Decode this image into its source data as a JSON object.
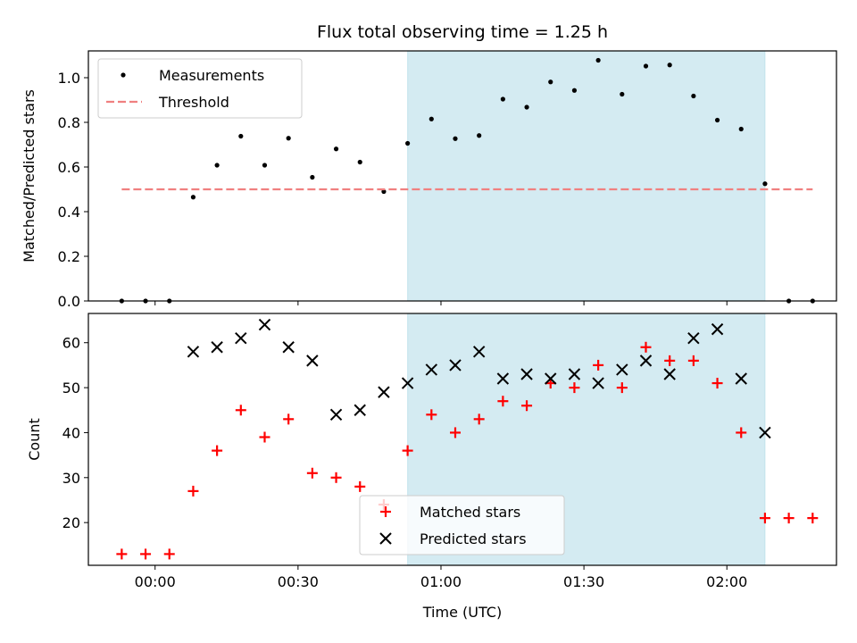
{
  "chart_data": [
    {
      "type": "scatter",
      "title": "Flux total observing time = 1.25 h",
      "ylabel": "Matched/Predicted stars",
      "xlabel": "",
      "x_unit": "minutes after 00:00 UTC",
      "xlim": [
        -14,
        143
      ],
      "ylim": [
        0,
        1.12
      ],
      "yticks": [
        "0.0",
        "0.2",
        "0.4",
        "0.6",
        "0.8",
        "1.0"
      ],
      "ytick_values": [
        0,
        0.2,
        0.4,
        0.6,
        0.8,
        1.0
      ],
      "grid": false,
      "legend_position": "upper-left",
      "shaded_span": {
        "x0": 53,
        "x1": 128,
        "color": "#add8e6"
      },
      "series": [
        {
          "name": "Measurements",
          "marker": "dot",
          "color": "#000000",
          "x": [
            -7,
            -2,
            3,
            8,
            13,
            18,
            23,
            28,
            33,
            38,
            43,
            48,
            53,
            58,
            63,
            68,
            73,
            78,
            83,
            88,
            93,
            98,
            103,
            108,
            113,
            118,
            123,
            128,
            133,
            138
          ],
          "y": [
            0.0,
            0.0,
            0.0,
            0.465,
            0.608,
            0.738,
            0.608,
            0.729,
            0.554,
            0.681,
            0.622,
            0.49,
            0.706,
            0.815,
            0.727,
            0.741,
            0.904,
            0.868,
            0.981,
            0.943,
            1.078,
            0.926,
            1.052,
            1.057,
            0.918,
            0.81,
            0.77,
            0.525,
            0.0,
            0.0
          ]
        },
        {
          "name": "Threshold",
          "style": "dashed",
          "color": "#f08080",
          "x": [
            -7,
            138
          ],
          "y": [
            0.5,
            0.5
          ]
        }
      ]
    },
    {
      "type": "scatter",
      "title": "",
      "ylabel": "Count",
      "xlabel": "Time (UTC)",
      "x_unit": "minutes after 00:00 UTC",
      "xlim": [
        -14,
        143
      ],
      "ylim": [
        10.5,
        66.5
      ],
      "xticks": [
        "00:00",
        "00:30",
        "01:00",
        "01:30",
        "02:00"
      ],
      "xtick_values": [
        0,
        30,
        60,
        90,
        120
      ],
      "yticks": [
        "20",
        "30",
        "40",
        "50",
        "60"
      ],
      "ytick_values": [
        20,
        30,
        40,
        50,
        60
      ],
      "grid": false,
      "legend_position": "lower-center",
      "shaded_span": {
        "x0": 53,
        "x1": 128,
        "color": "#add8e6"
      },
      "series": [
        {
          "name": "Matched stars",
          "marker": "plus",
          "color": "#ff0000",
          "x": [
            -7,
            -2,
            3,
            8,
            13,
            18,
            23,
            28,
            33,
            38,
            43,
            48,
            53,
            58,
            63,
            68,
            73,
            78,
            83,
            88,
            93,
            98,
            103,
            108,
            113,
            118,
            123,
            128,
            133,
            138
          ],
          "y": [
            13,
            13,
            13,
            27,
            36,
            45,
            39,
            43,
            31,
            30,
            28,
            24,
            36,
            44,
            40,
            43,
            47,
            46,
            51,
            50,
            55,
            50,
            59,
            56,
            56,
            51,
            40,
            21,
            21,
            21
          ]
        },
        {
          "name": "Predicted stars",
          "marker": "x",
          "color": "#000000",
          "x": [
            8,
            13,
            18,
            23,
            28,
            33,
            38,
            43,
            48,
            53,
            58,
            63,
            68,
            73,
            78,
            83,
            88,
            93,
            98,
            103,
            108,
            113,
            118,
            123,
            128
          ],
          "y": [
            58,
            59,
            61,
            64,
            59,
            56,
            44,
            45,
            49,
            51,
            54,
            55,
            58,
            52,
            53,
            52,
            53,
            51,
            54,
            56,
            53,
            61,
            63,
            52,
            40
          ]
        }
      ]
    }
  ]
}
